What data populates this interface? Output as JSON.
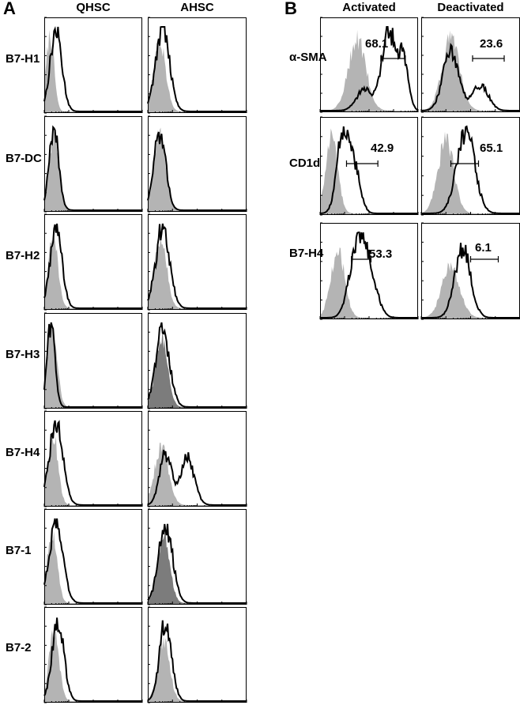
{
  "panel_a": {
    "letter": "A",
    "col_headers": [
      "QHSC",
      "AHSC"
    ],
    "row_labels": [
      "B7-H1",
      "B7-DC",
      "B7-H2",
      "B7-H3",
      "B7-H4",
      "B7-1",
      "B7-2"
    ]
  },
  "panel_b": {
    "letter": "B",
    "col_headers": [
      "Activated",
      "Deactivated"
    ],
    "row_labels": [
      "α-SMA",
      "CD1d",
      "B7-H4"
    ],
    "gate_values": [
      [
        "68.1",
        "23.6"
      ],
      [
        "42.9",
        "65.1"
      ],
      [
        "53.3",
        "6.1"
      ]
    ]
  },
  "colors": {
    "isotype_fill": "#b4b4b4",
    "isotype_fill_dark": "#7c7c7c",
    "stain_line": "#000000"
  },
  "chart_data": [
    {
      "type": "area",
      "title": "",
      "panel": "A",
      "description": "Flow cytometry histograms of HSC surface markers",
      "columns": [
        "QHSC",
        "AHSC"
      ],
      "rows": [
        "B7-H1",
        "B7-DC",
        "B7-H2",
        "B7-H3",
        "B7-H4",
        "B7-1",
        "B7-2"
      ],
      "x_range": [
        0,
        100
      ],
      "series": [
        "isotype",
        "stain"
      ],
      "histograms": [
        [
          {
            "iso": [
              [
                6,
                0.9,
                4
              ]
            ],
            "stain": [
              [
                12,
                0.95,
                6
              ]
            ]
          },
          {
            "iso": [
              [
                12,
                0.85,
                6
              ]
            ],
            "stain": [
              [
                15,
                1,
                7
              ]
            ]
          }
        ],
        [
          {
            "iso": [
              [
                10,
                0.9,
                5
              ]
            ],
            "stain": [
              [
                10,
                0.92,
                5
              ]
            ]
          },
          {
            "iso": [
              [
                12,
                0.9,
                6
              ]
            ],
            "stain": [
              [
                12,
                0.92,
                6
              ]
            ]
          }
        ],
        [
          {
            "iso": [
              [
                9,
                0.88,
                5
              ]
            ],
            "stain": [
              [
                12,
                0.95,
                6
              ]
            ]
          },
          {
            "iso": [
              [
                13,
                0.85,
                6
              ]
            ],
            "stain": [
              [
                15,
                0.95,
                7
              ]
            ]
          }
        ],
        [
          {
            "iso": [
              [
                8,
                0.95,
                5
              ]
            ],
            "stain": [
              [
                7,
                0.98,
                4
              ]
            ]
          },
          {
            "iso": [
              [
                14,
                0.85,
                6
              ]
            ],
            "stain": [
              [
                15,
                0.9,
                7
              ]
            ]
          }
        ],
        [
          {
            "iso": [
              [
                9,
                0.85,
                5
              ]
            ],
            "stain": [
              [
                12,
                0.95,
                7
              ]
            ]
          },
          {
            "iso": [
              [
                14,
                0.7,
                7
              ]
            ],
            "stain": [
              [
                18,
                0.6,
                6
              ],
              [
                40,
                0.55,
                7
              ]
            ]
          }
        ],
        [
          {
            "iso": [
              [
                8,
                0.85,
                5
              ]
            ],
            "stain": [
              [
                12,
                0.95,
                7
              ]
            ]
          },
          {
            "iso": [
              [
                16,
                0.85,
                6
              ]
            ],
            "stain": [
              [
                18,
                0.92,
                7
              ]
            ]
          }
        ],
        [
          {
            "iso": [
              [
                10,
                0.85,
                5
              ]
            ],
            "stain": [
              [
                14,
                0.95,
                6
              ]
            ]
          },
          {
            "iso": [
              [
                16,
                0.7,
                6
              ]
            ],
            "stain": [
              [
                18,
                0.95,
                6
              ]
            ]
          }
        ]
      ]
    },
    {
      "type": "area",
      "title": "",
      "panel": "B",
      "description": "Flow cytometry histograms of activated vs deactivated HSC",
      "columns": [
        "Activated",
        "Deactivated"
      ],
      "rows": [
        "α-SMA",
        "CD1d",
        "B7-H4"
      ],
      "x_range": [
        0,
        100
      ],
      "series": [
        "isotype",
        "stain"
      ],
      "gate_percentages": [
        [
          68.1,
          23.6
        ],
        [
          42.9,
          65.1
        ],
        [
          53.3,
          6.1
        ]
      ],
      "histograms": [
        [
          {
            "iso": [
              [
                38,
                0.85,
                9
              ]
            ],
            "stain": [
              [
                70,
                0.95,
                7
              ],
              [
                85,
                0.6,
                5
              ],
              [
                45,
                0.25,
                8
              ]
            ],
            "gate": [
              62,
              87
            ]
          },
          {
            "iso": [
              [
                30,
                0.85,
                9
              ]
            ],
            "stain": [
              [
                30,
                0.7,
                8
              ],
              [
                60,
                0.3,
                8
              ]
            ],
            "gate": [
              52,
              84
            ]
          }
        ],
        [
          {
            "iso": [
              [
                12,
                0.9,
                6
              ]
            ],
            "stain": [
              [
                23,
                0.9,
                6
              ],
              [
                35,
                0.5,
                6
              ]
            ],
            "gate": [
              27,
              59
            ]
          },
          {
            "iso": [
              [
                25,
                0.85,
                8
              ]
            ],
            "stain": [
              [
                45,
                0.95,
                9
              ]
            ],
            "gate": [
              30,
              58
            ]
          }
        ],
        [
          {
            "iso": [
              [
                18,
                0.8,
                7
              ]
            ],
            "stain": [
              [
                38,
                0.8,
                8
              ],
              [
                50,
                0.5,
                8
              ]
            ],
            "gate": [
              32,
              52
            ]
          },
          {
            "iso": [
              [
                30,
                0.6,
                9
              ]
            ],
            "stain": [
              [
                42,
                0.8,
                8
              ]
            ],
            "gate": [
              50,
              78
            ]
          }
        ]
      ]
    }
  ]
}
